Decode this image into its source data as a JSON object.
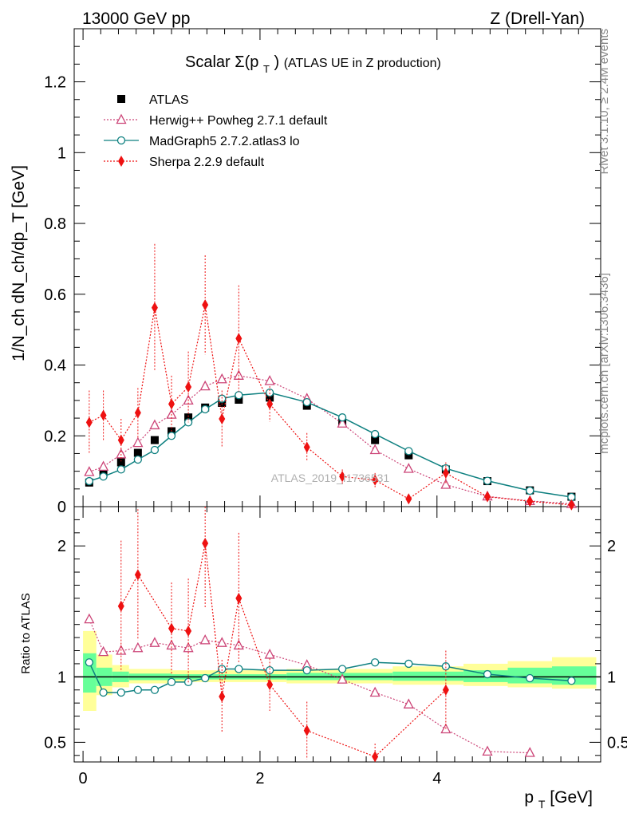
{
  "header": {
    "left": "13000 GeV pp",
    "right": "Z (Drell-Yan)"
  },
  "side_labels": {
    "top": "Rivet 3.1.10, ≥ 2.4M events",
    "bottom": "mcplots.cern.ch [arXiv:1306.3436]"
  },
  "watermark": "ATLAS_2019_I1736531",
  "chart_data": [
    {
      "type": "scatter",
      "panel": "main",
      "title_main": "Scalar Σ(p",
      "title_sub": "T",
      "title_close": ")",
      "title_rest": " (ATLAS UE in Z production)",
      "ylabel": "1/N_ch dN_ch/dp_T [GeV]",
      "xlim": [
        -0.1,
        5.85
      ],
      "ylim": [
        0,
        1.35
      ],
      "x_ticks": [
        0,
        2,
        4
      ],
      "y_ticks": [
        0,
        0.2,
        0.4,
        0.6,
        0.8,
        1.0,
        1.2
      ],
      "y_tick_labels": [
        "0",
        "0.2",
        "0.4",
        "0.6",
        "0.8",
        "1",
        "1.2"
      ],
      "legend_position": "top-left",
      "series": [
        {
          "name": "ATLAS",
          "color": "#000000",
          "marker": "square",
          "x": [
            0.07,
            0.23,
            0.43,
            0.62,
            0.81,
            1.0,
            1.19,
            1.38,
            1.57,
            1.76,
            2.11,
            2.53,
            2.93,
            3.3,
            3.68,
            4.1,
            4.57,
            5.05,
            5.52
          ],
          "y": [
            0.068,
            0.095,
            0.125,
            0.152,
            0.188,
            0.213,
            0.252,
            0.28,
            0.293,
            0.302,
            0.308,
            0.285,
            0.238,
            0.188,
            0.145,
            0.105,
            0.072,
            0.046,
            0.028
          ]
        },
        {
          "name": "Herwig++ Powheg 2.7.1 default",
          "color": "#cc4477",
          "marker": "triangle",
          "x": [
            0.07,
            0.23,
            0.43,
            0.62,
            0.81,
            1.0,
            1.19,
            1.38,
            1.57,
            1.76,
            2.11,
            2.53,
            2.93,
            3.3,
            3.68,
            4.1,
            4.57,
            5.05,
            5.52
          ],
          "y": [
            0.098,
            0.113,
            0.148,
            0.18,
            0.23,
            0.26,
            0.3,
            0.34,
            0.36,
            0.37,
            0.355,
            0.305,
            0.235,
            0.16,
            0.107,
            0.062,
            0.029,
            0.016,
            0.008
          ]
        },
        {
          "name": "MadGraph5 2.7.2.atlas3 lo",
          "color": "#0e8080",
          "marker": "circle",
          "x": [
            0.07,
            0.23,
            0.43,
            0.62,
            0.81,
            1.0,
            1.19,
            1.38,
            1.57,
            1.76,
            2.11,
            2.53,
            2.93,
            3.3,
            3.68,
            4.1,
            4.57,
            5.05,
            5.52
          ],
          "y": [
            0.072,
            0.085,
            0.105,
            0.133,
            0.16,
            0.2,
            0.238,
            0.275,
            0.305,
            0.315,
            0.322,
            0.295,
            0.252,
            0.205,
            0.157,
            0.108,
            0.073,
            0.045,
            0.027
          ]
        },
        {
          "name": "Sherpa 2.2.9 default",
          "color": "#ee1111",
          "marker": "diamond",
          "x": [
            0.07,
            0.23,
            0.43,
            0.62,
            0.81,
            1.0,
            1.19,
            1.38,
            1.57,
            1.76,
            2.11,
            2.53,
            2.93,
            3.3,
            3.68,
            4.1,
            4.57,
            5.05,
            5.52
          ],
          "y": [
            0.238,
            0.258,
            0.188,
            0.265,
            0.562,
            0.29,
            0.338,
            0.57,
            0.248,
            0.475,
            0.29,
            0.168,
            0.085,
            0.075,
            0.022,
            0.095,
            0.028,
            0.015,
            0.005
          ],
          "err": [
            0.09,
            0.07,
            0.06,
            0.07,
            0.18,
            0.08,
            0.1,
            0.14,
            0.08,
            0.15,
            0.05,
            0.04,
            0.02,
            0.02,
            0.01,
            0.03,
            0.01,
            0.005,
            0.003
          ]
        }
      ]
    },
    {
      "type": "scatter",
      "panel": "ratio",
      "ylabel": "Ratio to ATLAS",
      "xlabel_main": "p",
      "xlabel_sub": "T",
      "xlabel_rest": " [GeV]",
      "xlim": [
        -0.1,
        5.85
      ],
      "ylim": [
        0.35,
        2.3
      ],
      "x_ticks": [
        0,
        2,
        4
      ],
      "x_tick_labels": [
        "0",
        "2",
        "4"
      ],
      "y_ticks": [
        0.5,
        1,
        2
      ],
      "y_tick_labels": [
        "0.5",
        "1",
        "2"
      ],
      "bands": {
        "yellow_color": "#ffff99",
        "green_color": "#66ff99",
        "bins": [
          {
            "x0": 0.0,
            "x1": 0.15,
            "y_lo": 0.74,
            "y_hi": 1.35,
            "g_lo": 0.88,
            "g_hi": 1.18
          },
          {
            "x0": 0.15,
            "x1": 0.33,
            "y_lo": 0.86,
            "y_hi": 1.17,
            "g_lo": 0.93,
            "g_hi": 1.07
          },
          {
            "x0": 0.33,
            "x1": 0.52,
            "y_lo": 0.92,
            "y_hi": 1.09,
            "g_lo": 0.96,
            "g_hi": 1.04
          },
          {
            "x0": 0.52,
            "x1": 1.0,
            "y_lo": 0.95,
            "y_hi": 1.06,
            "g_lo": 0.975,
            "g_hi": 1.025
          },
          {
            "x0": 1.0,
            "x1": 2.3,
            "y_lo": 0.96,
            "y_hi": 1.05,
            "g_lo": 0.98,
            "g_hi": 1.02
          },
          {
            "x0": 2.3,
            "x1": 3.5,
            "y_lo": 0.95,
            "y_hi": 1.06,
            "g_lo": 0.975,
            "g_hi": 1.03
          },
          {
            "x0": 3.5,
            "x1": 4.3,
            "y_lo": 0.94,
            "y_hi": 1.08,
            "g_lo": 0.97,
            "g_hi": 1.04
          },
          {
            "x0": 4.3,
            "x1": 4.8,
            "y_lo": 0.93,
            "y_hi": 1.1,
            "g_lo": 0.96,
            "g_hi": 1.05
          },
          {
            "x0": 4.8,
            "x1": 5.3,
            "y_lo": 0.92,
            "y_hi": 1.12,
            "g_lo": 0.95,
            "g_hi": 1.07
          },
          {
            "x0": 5.3,
            "x1": 5.8,
            "y_lo": 0.91,
            "y_hi": 1.15,
            "g_lo": 0.94,
            "g_hi": 1.08
          }
        ]
      },
      "series": [
        {
          "name": "Herwig++ Powheg 2.7.1 default",
          "color": "#cc4477",
          "marker": "triangle",
          "x": [
            0.07,
            0.23,
            0.43,
            0.62,
            0.81,
            1.0,
            1.19,
            1.38,
            1.57,
            1.76,
            2.11,
            2.53,
            2.93,
            3.3,
            3.68,
            4.1,
            4.57,
            5.05
          ],
          "y": [
            1.44,
            1.19,
            1.2,
            1.22,
            1.26,
            1.24,
            1.22,
            1.28,
            1.26,
            1.24,
            1.17,
            1.09,
            0.98,
            0.88,
            0.79,
            0.6,
            0.43,
            0.42
          ]
        },
        {
          "name": "MadGraph5 2.7.2.atlas3 lo",
          "color": "#0e8080",
          "marker": "circle",
          "x": [
            0.07,
            0.23,
            0.43,
            0.62,
            0.81,
            1.0,
            1.19,
            1.38,
            1.57,
            1.76,
            2.11,
            2.53,
            2.93,
            3.3,
            3.68,
            4.1,
            4.57,
            5.05,
            5.52
          ],
          "y": [
            1.11,
            0.88,
            0.88,
            0.9,
            0.9,
            0.96,
            0.96,
            0.99,
            1.06,
            1.06,
            1.05,
            1.05,
            1.06,
            1.11,
            1.1,
            1.08,
            1.02,
            0.99,
            0.97
          ]
        },
        {
          "name": "Sherpa 2.2.9 default",
          "color": "#ee1111",
          "marker": "diamond",
          "x": [
            0.43,
            0.62,
            1.0,
            1.19,
            1.38,
            1.57,
            1.76,
            2.11,
            2.53,
            3.3,
            4.1
          ],
          "y": [
            1.54,
            1.78,
            1.37,
            1.35,
            2.02,
            0.85,
            1.6,
            0.94,
            0.59,
            0.39,
            0.9
          ],
          "err": [
            0.5,
            0.5,
            0.35,
            0.4,
            0.5,
            0.28,
            0.5,
            0.2,
            0.22,
            0.1,
            0.3
          ]
        }
      ]
    }
  ]
}
